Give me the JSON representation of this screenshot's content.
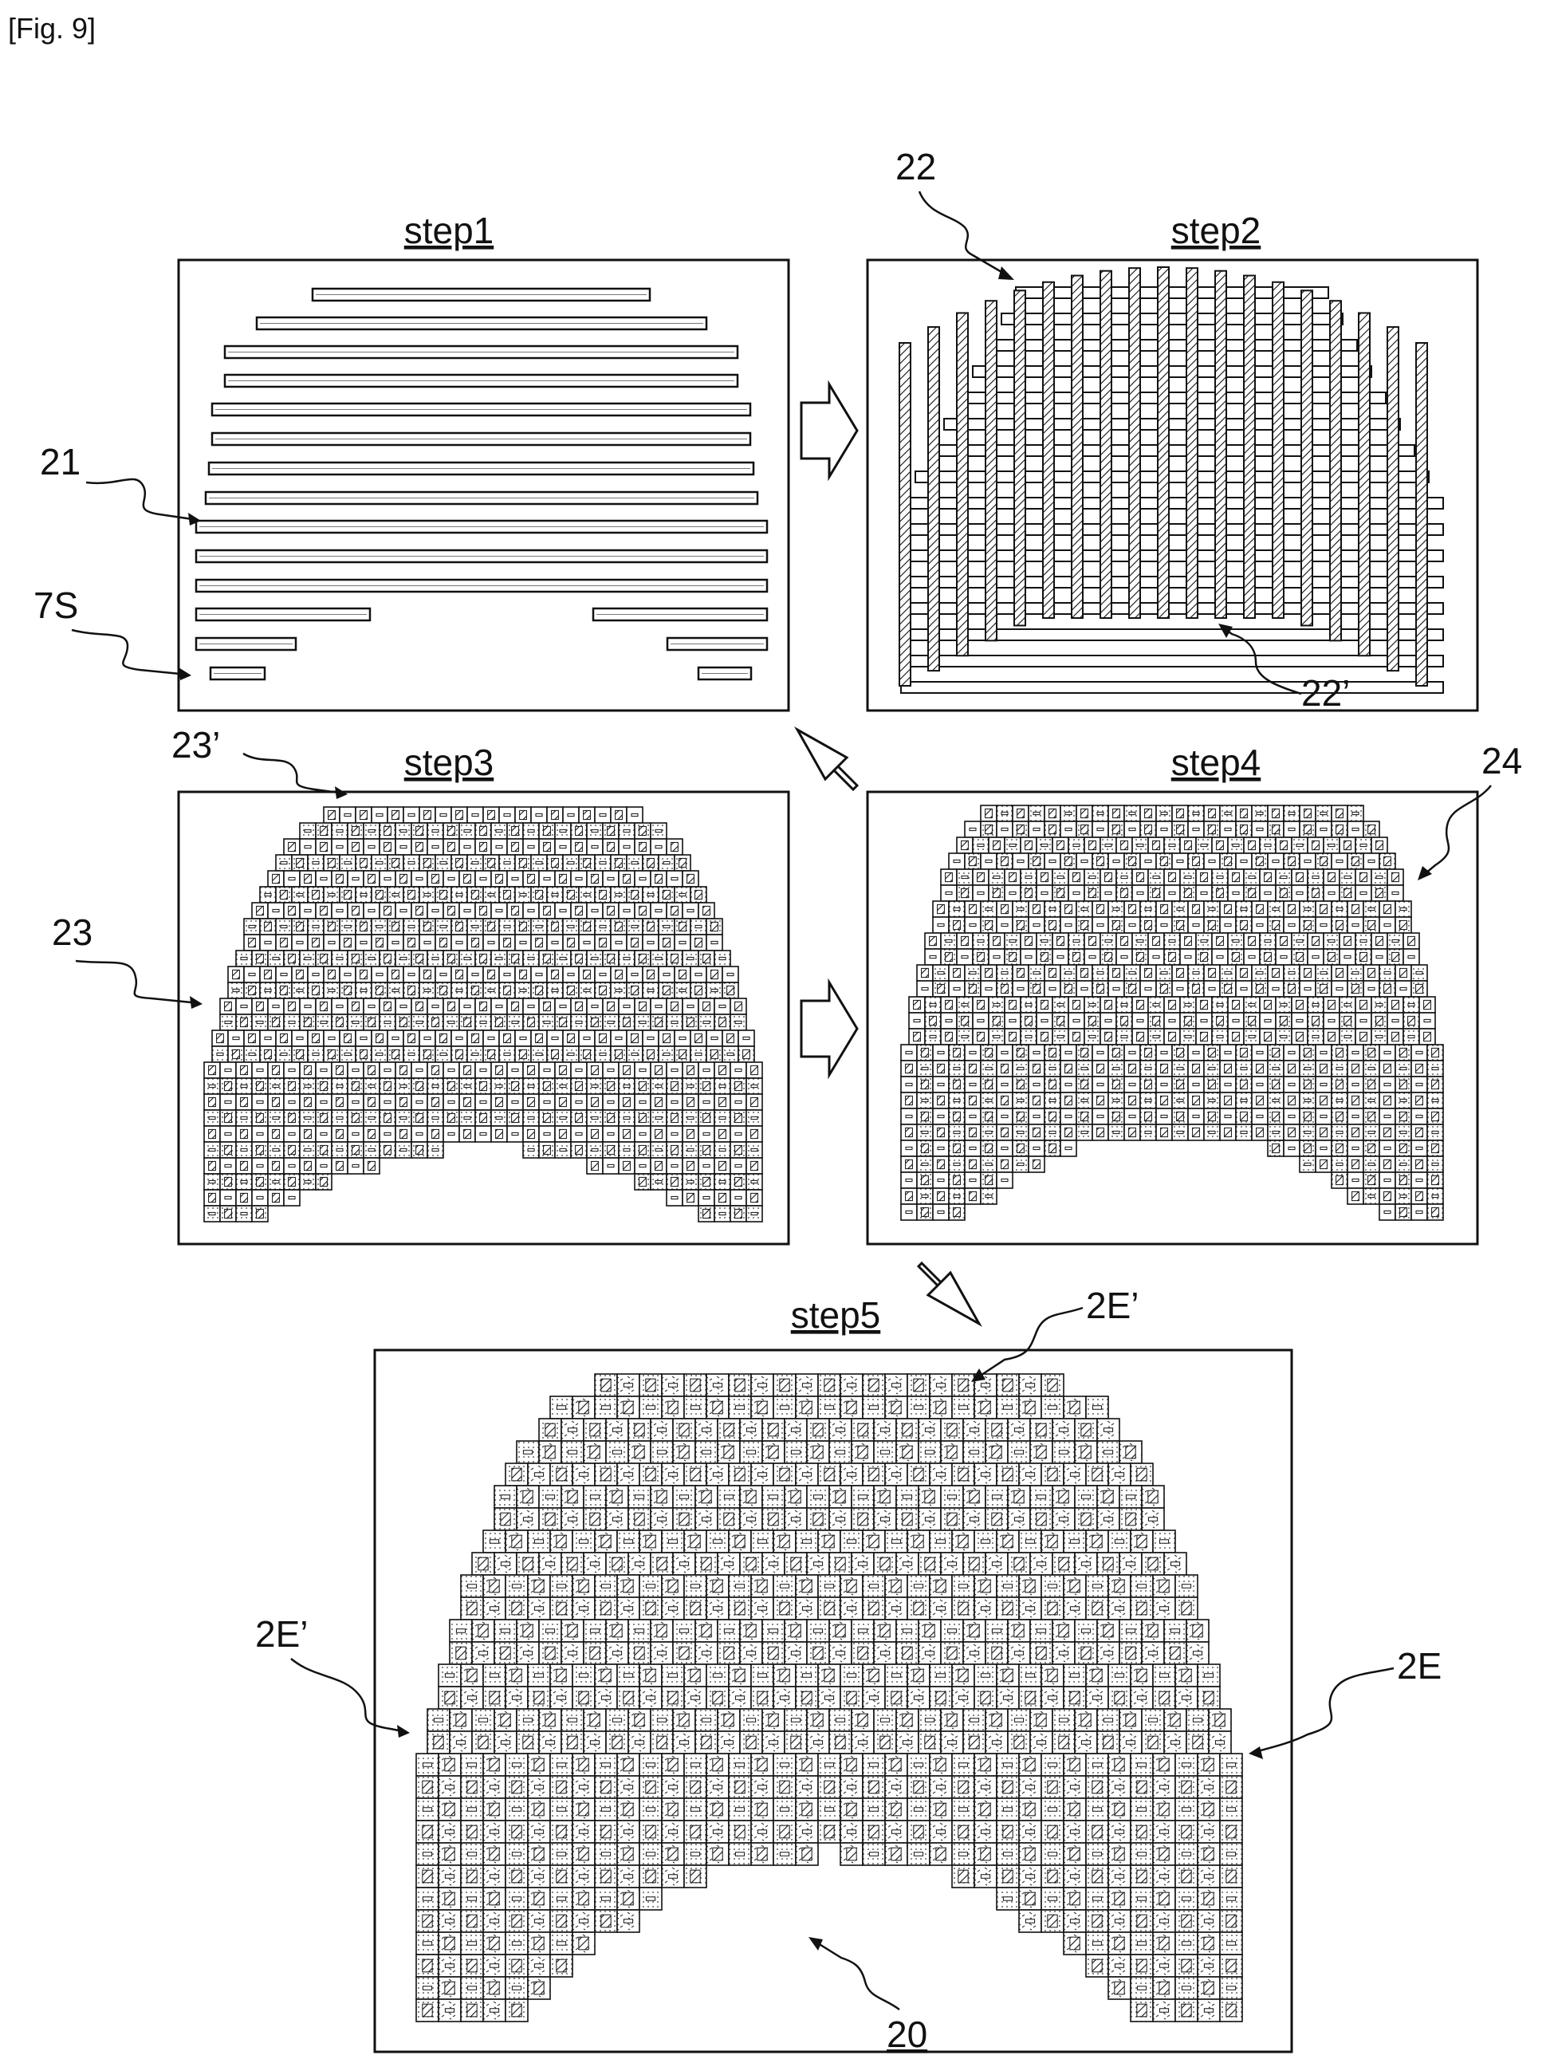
{
  "figure_label": "[Fig. 9]",
  "steps": {
    "step1": "step1",
    "step2": "step2",
    "step3": "step3",
    "step4": "step4",
    "step5": "step5"
  },
  "references": {
    "r21": "21",
    "r7S": "7S",
    "r22": "22",
    "r22p": "22’",
    "r23p": "23’",
    "r23": "23",
    "r24": "24",
    "r2Ep_top": "2E’",
    "r2Ep_left": "2E’",
    "r2E": "2E",
    "r20": "20"
  },
  "colors": {
    "line": "#111111",
    "background": "#ffffff",
    "fill_light": "#dcdcdc",
    "fill_dotted": "#eeeeee"
  },
  "flow_arrows": [
    "step1-to-step2",
    "step2-to-step3",
    "step3-to-step4",
    "step4-to-step5"
  ]
}
